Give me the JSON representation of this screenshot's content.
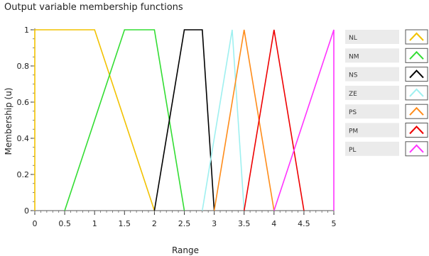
{
  "chart_data": {
    "type": "line",
    "title": "Output variable membership functions",
    "xlabel": "Range",
    "ylabel": "Membership (u)",
    "xlim": [
      0,
      5
    ],
    "ylim": [
      0,
      1
    ],
    "xticks": [
      "0",
      "0.5",
      "1",
      "1.5",
      "2",
      "2.5",
      "3",
      "3.5",
      "4",
      "4.5",
      "5"
    ],
    "xtick_values": [
      0,
      0.5,
      1,
      1.5,
      2,
      2.5,
      3,
      3.5,
      4,
      4.5,
      5
    ],
    "yticks": [
      "0",
      "0.2",
      "0.4",
      "0.6",
      "0.8",
      "1"
    ],
    "ytick_values": [
      0,
      0.2,
      0.4,
      0.6,
      0.8,
      1
    ],
    "grid": false,
    "legend_position": "right",
    "series": [
      {
        "name": "NL",
        "color": "#f2c200",
        "x": [
          0,
          0,
          1,
          2
        ],
        "y": [
          0,
          1,
          1,
          0
        ]
      },
      {
        "name": "NM",
        "color": "#33dd33",
        "x": [
          0.5,
          1.5,
          2,
          2.5
        ],
        "y": [
          0,
          1,
          1,
          0
        ]
      },
      {
        "name": "NS",
        "color": "#000000",
        "x": [
          2,
          2.5,
          2.8,
          3
        ],
        "y": [
          0,
          1,
          1,
          0
        ]
      },
      {
        "name": "ZE",
        "color": "#9ef0f0",
        "x": [
          2.8,
          3.3,
          3.5
        ],
        "y": [
          0,
          1,
          0
        ]
      },
      {
        "name": "PS",
        "color": "#ff8c1a",
        "x": [
          3,
          3.5,
          4
        ],
        "y": [
          0,
          1,
          0
        ]
      },
      {
        "name": "PM",
        "color": "#ee0000",
        "x": [
          3.5,
          4,
          4.5
        ],
        "y": [
          0,
          1,
          0
        ]
      },
      {
        "name": "PL",
        "color": "#ff33ff",
        "x": [
          4,
          5,
          5
        ],
        "y": [
          0,
          1,
          0
        ]
      }
    ]
  }
}
